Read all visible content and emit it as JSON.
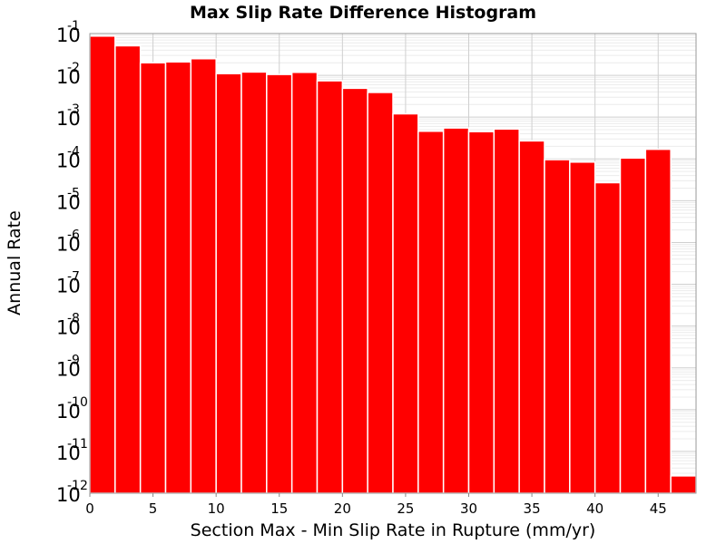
{
  "chart_data": {
    "type": "bar",
    "title": "Max Slip Rate Difference Histogram",
    "xlabel": "Section Max - Min Slip Rate in Rupture (mm/yr)",
    "ylabel": "Annual Rate",
    "y_scale": "log",
    "ylim": [
      1e-12,
      0.1
    ],
    "xlim": [
      0,
      48
    ],
    "bin_width": 2,
    "x_ticks": [
      0,
      5,
      10,
      15,
      20,
      25,
      30,
      35,
      40,
      45
    ],
    "y_tick_exponents": [
      -12,
      -11,
      -10,
      -9,
      -8,
      -7,
      -6,
      -5,
      -4,
      -3,
      -2,
      -1
    ],
    "y_tick_base": "10",
    "grid": true,
    "color": "#ff0000",
    "x": [
      1,
      3,
      5,
      7,
      9,
      11,
      13,
      15,
      17,
      19,
      21,
      23,
      25,
      27,
      29,
      31,
      33,
      35,
      37,
      39,
      41,
      43,
      45,
      47
    ],
    "values": [
      0.087,
      0.051,
      0.02,
      0.021,
      0.025,
      0.011,
      0.012,
      0.0105,
      0.0118,
      0.0074,
      0.0049,
      0.0039,
      0.0012,
      0.00046,
      0.00055,
      0.00045,
      0.00052,
      0.00027,
      9.6e-05,
      8.4e-05,
      2.7e-05,
      0.000105,
      0.00017,
      2.6e-12
    ]
  }
}
